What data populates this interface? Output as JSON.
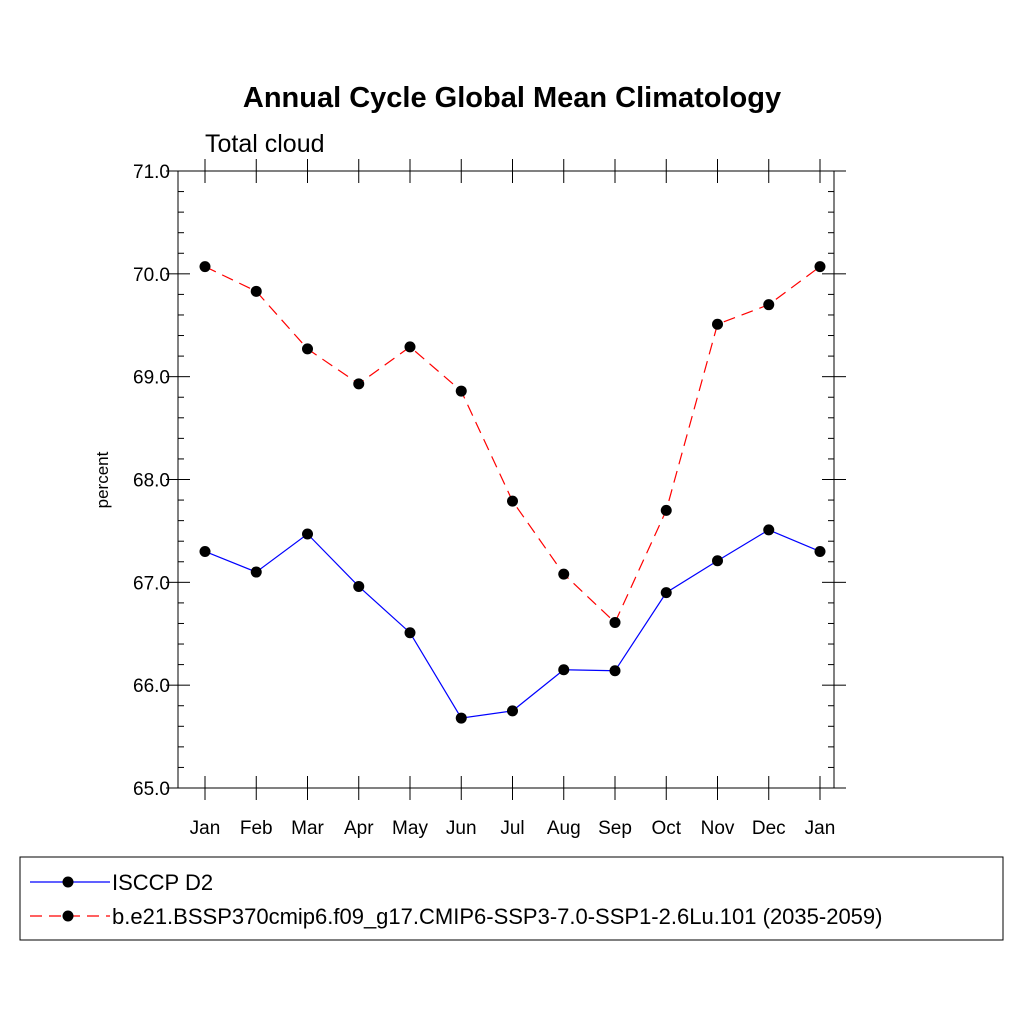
{
  "chart_data": {
    "type": "line",
    "title": "Annual Cycle Global Mean Climatology",
    "subtitle": "Total cloud",
    "xlabel": "",
    "ylabel": "percent",
    "categories": [
      "Jan",
      "Feb",
      "Mar",
      "Apr",
      "May",
      "Jun",
      "Jul",
      "Aug",
      "Sep",
      "Oct",
      "Nov",
      "Dec",
      "Jan"
    ],
    "ylim": [
      65.0,
      71.0
    ],
    "yticks": [
      "65.0",
      "66.0",
      "67.0",
      "68.0",
      "69.0",
      "70.0",
      "71.0"
    ],
    "grid": false,
    "legend_position": "bottom",
    "series": [
      {
        "name": "ISCCP D2",
        "color": "#0000ff",
        "dash": "solid",
        "values": [
          67.3,
          67.1,
          67.47,
          66.96,
          66.51,
          65.68,
          65.75,
          66.15,
          66.14,
          66.9,
          67.21,
          67.51,
          67.3
        ]
      },
      {
        "name": "b.e21.BSSP370cmip6.f09_g17.CMIP6-SSP3-7.0-SSP1-2.6Lu.101 (2035-2059)",
        "color": "#ff0000",
        "dash": "dashed",
        "values": [
          70.07,
          69.83,
          69.27,
          68.93,
          69.29,
          68.86,
          67.79,
          67.08,
          66.61,
          67.7,
          69.51,
          69.7,
          70.07
        ]
      }
    ]
  }
}
